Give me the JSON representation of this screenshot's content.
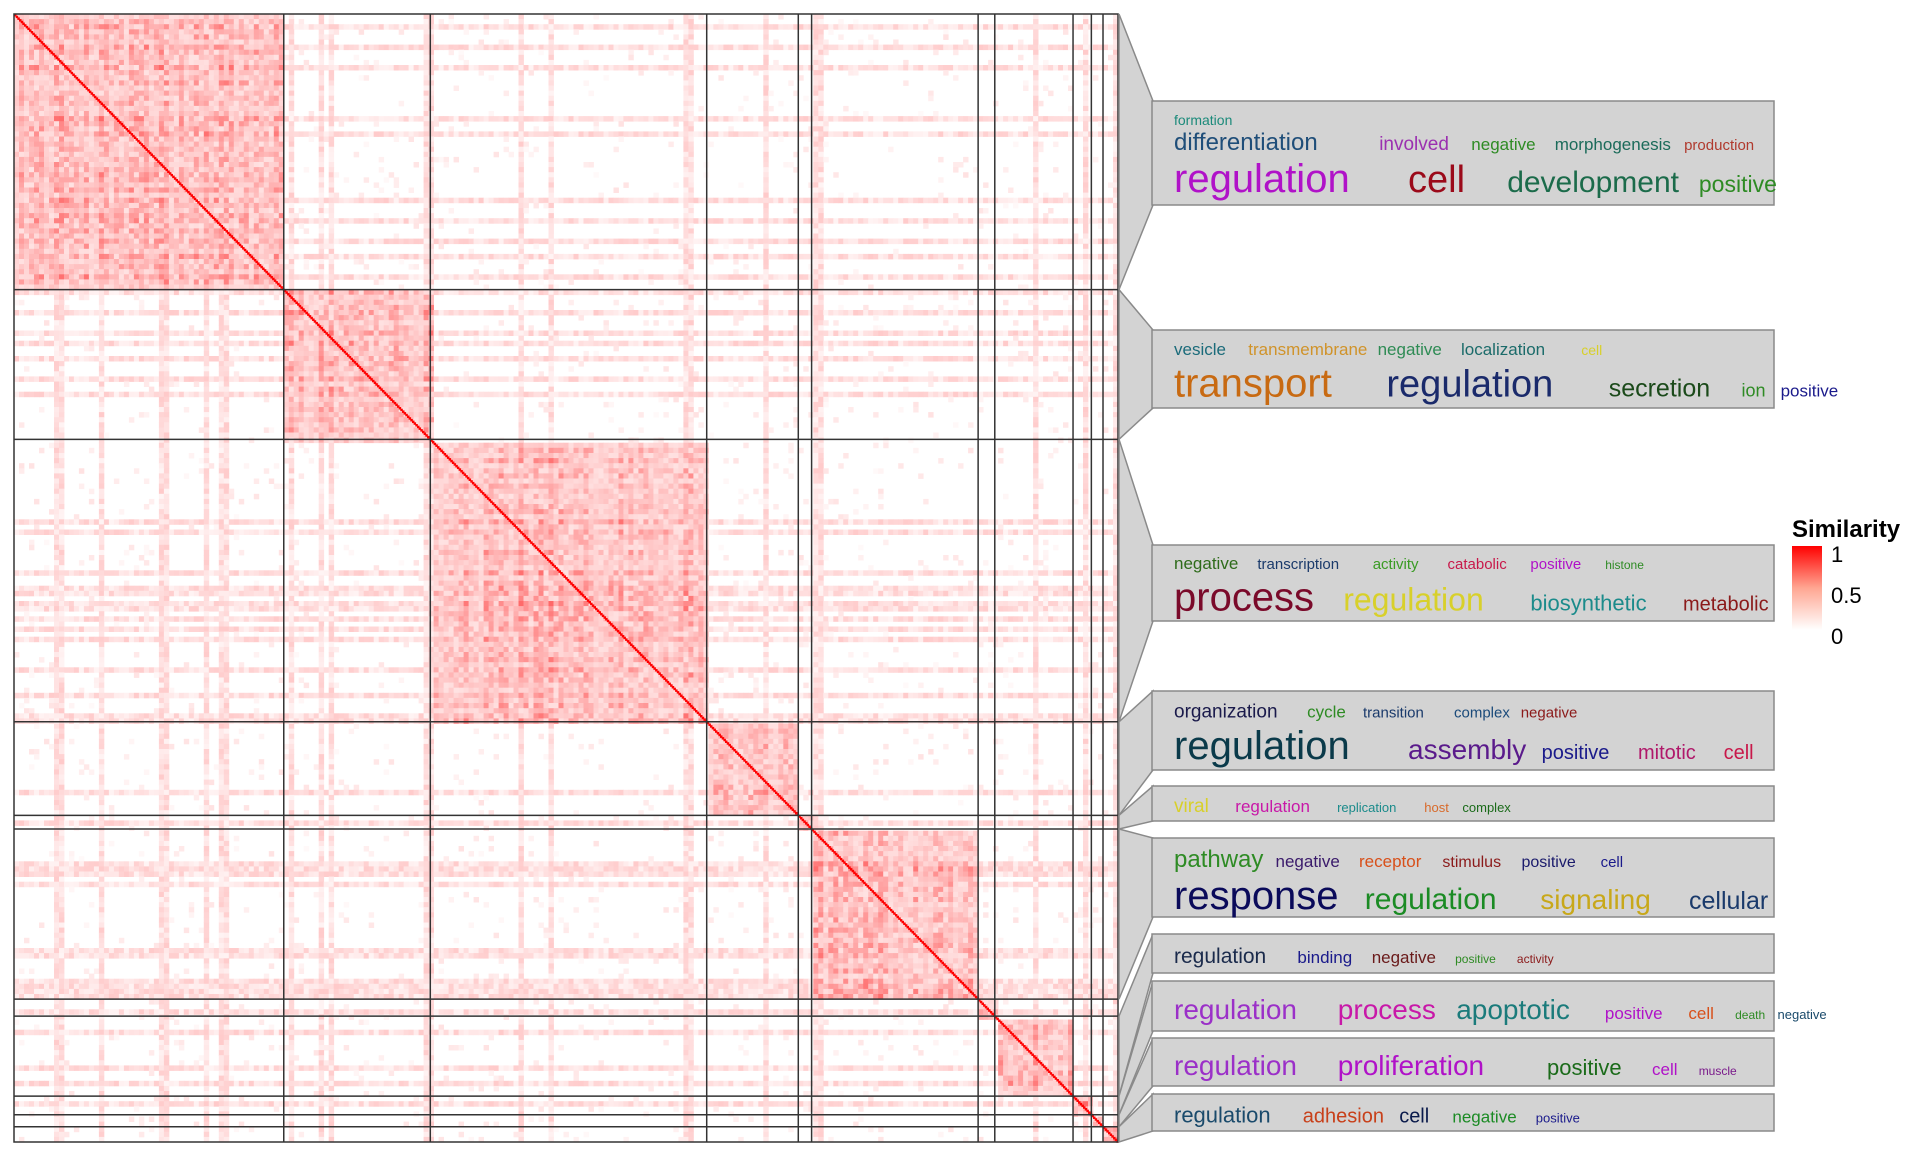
{
  "chart_data": {
    "type": "heatmap",
    "title": "",
    "xlabel": "",
    "ylabel": "",
    "color_scale": {
      "low": "#ffffff",
      "mid": "#ffa692",
      "high": "#ff0000",
      "border": "#333333"
    },
    "legend": {
      "title": "Similarity",
      "ticks": [
        "1",
        "0.5",
        "0"
      ],
      "range": [
        0,
        1
      ],
      "placement": "right"
    },
    "cluster_sizes": [
      162,
      88,
      166,
      55,
      8,
      100,
      10,
      47,
      11,
      7,
      9
    ],
    "clusters": [
      {
        "lines": [
          [
            {
              "t": "formation",
              "s": 14,
              "c": "#1b8a7a"
            }
          ],
          [
            {
              "t": "differentiation",
              "s": 24,
              "c": "#1f4e79"
            },
            {
              "t": "involved",
              "s": 19,
              "c": "#9b30b0"
            },
            {
              "t": "negative",
              "s": 17,
              "c": "#2e8b24"
            },
            {
              "t": "morphogenesis",
              "s": 17,
              "c": "#1b6b5a"
            },
            {
              "t": "production",
              "s": 15,
              "c": "#b03a2e"
            }
          ],
          [
            {
              "t": "regulation",
              "s": 40,
              "c": "#b012c8"
            },
            {
              "t": "cell",
              "s": 38,
              "c": "#9b0a1a"
            },
            {
              "t": "development",
              "s": 30,
              "c": "#1b6b4a"
            },
            {
              "t": "positive",
              "s": 23,
              "c": "#2e8b24"
            }
          ]
        ]
      },
      {
        "lines": [
          [
            {
              "t": "vesicle",
              "s": 17,
              "c": "#1b6b7a"
            },
            {
              "t": "transmembrane",
              "s": 17,
              "c": "#d0932a"
            },
            {
              "t": "negative",
              "s": 17,
              "c": "#2e8b54"
            },
            {
              "t": "localization",
              "s": 17,
              "c": "#1b6b6a"
            },
            {
              "t": "cell",
              "s": 14,
              "c": "#d8d02a"
            }
          ],
          [
            {
              "t": "transport",
              "s": 40,
              "c": "#c86a12"
            },
            {
              "t": "regulation",
              "s": 38,
              "c": "#1a2a6b"
            },
            {
              "t": "secretion",
              "s": 25,
              "c": "#1b4a1a"
            },
            {
              "t": "ion",
              "s": 18,
              "c": "#2e8b24"
            },
            {
              "t": "positive",
              "s": 17,
              "c": "#1a1a8b"
            }
          ]
        ]
      },
      {
        "lines": [
          [
            {
              "t": "negative",
              "s": 17,
              "c": "#2e6b1a"
            },
            {
              "t": "transcription",
              "s": 15,
              "c": "#1a3a6b"
            },
            {
              "t": "activity",
              "s": 15,
              "c": "#3a9b24"
            },
            {
              "t": "catabolic",
              "s": 15,
              "c": "#c8184a"
            },
            {
              "t": "positive",
              "s": 15,
              "c": "#b012c8"
            },
            {
              "t": "histone",
              "s": 12,
              "c": "#2e8b24"
            }
          ],
          [
            {
              "t": "process",
              "s": 40,
              "c": "#7a0a2a"
            },
            {
              "t": "regulation",
              "s": 32,
              "c": "#d8d02a"
            },
            {
              "t": "biosynthetic",
              "s": 22,
              "c": "#1b8b8b"
            },
            {
              "t": "metabolic",
              "s": 20,
              "c": "#8b1a1a"
            }
          ]
        ]
      },
      {
        "lines": [
          [
            {
              "t": "organization",
              "s": 19,
              "c": "#1a1a4b"
            },
            {
              "t": "cycle",
              "s": 17,
              "c": "#2e8b24"
            },
            {
              "t": "transition",
              "s": 15,
              "c": "#1a3a6b"
            },
            {
              "t": "complex",
              "s": 15,
              "c": "#1a4a7a"
            },
            {
              "t": "negative",
              "s": 15,
              "c": "#8b1a1a"
            }
          ],
          [
            {
              "t": "regulation",
              "s": 40,
              "c": "#0a3a4a"
            },
            {
              "t": "assembly",
              "s": 28,
              "c": "#5a1a8b"
            },
            {
              "t": "positive",
              "s": 20,
              "c": "#1a1a8b"
            },
            {
              "t": "mitotic",
              "s": 20,
              "c": "#b0186a"
            },
            {
              "t": "cell",
              "s": 20,
              "c": "#c8184a"
            }
          ]
        ]
      },
      {
        "lines": [
          [
            {
              "t": "viral",
              "s": 19,
              "c": "#d8d02a"
            },
            {
              "t": "regulation",
              "s": 17,
              "c": "#c818a8"
            },
            {
              "t": "replication",
              "s": 13,
              "c": "#1b8b8b"
            },
            {
              "t": "host",
              "s": 13,
              "c": "#d86a2a"
            },
            {
              "t": "complex",
              "s": 13,
              "c": "#1b6b1a"
            }
          ]
        ]
      },
      {
        "lines": [
          [
            {
              "t": "pathway",
              "s": 24,
              "c": "#2e8b24"
            },
            {
              "t": "negative",
              "s": 17,
              "c": "#3a1a6b"
            },
            {
              "t": "receptor",
              "s": 17,
              "c": "#d8501a"
            },
            {
              "t": "stimulus",
              "s": 16,
              "c": "#8b1a1a"
            },
            {
              "t": "positive",
              "s": 16,
              "c": "#1a1a6b"
            },
            {
              "t": "cell",
              "s": 15,
              "c": "#1a1a8b"
            }
          ],
          [
            {
              "t": "response",
              "s": 40,
              "c": "#0a0a5a"
            },
            {
              "t": "regulation",
              "s": 30,
              "c": "#1b8b24"
            },
            {
              "t": "signaling",
              "s": 28,
              "c": "#c8a81a"
            },
            {
              "t": "cellular",
              "s": 25,
              "c": "#1a3a6b"
            }
          ]
        ]
      },
      {
        "lines": [
          [
            {
              "t": "regulation",
              "s": 21,
              "c": "#1a2a4b"
            },
            {
              "t": "binding",
              "s": 17,
              "c": "#1a1a8b"
            },
            {
              "t": "negative",
              "s": 17,
              "c": "#6a1a1a"
            },
            {
              "t": "positive",
              "s": 12,
              "c": "#2e8b24"
            },
            {
              "t": "activity",
              "s": 12,
              "c": "#8b1a1a"
            }
          ]
        ]
      },
      {
        "lines": [
          [
            {
              "t": "regulation",
              "s": 28,
              "c": "#9b30c8"
            },
            {
              "t": "process",
              "s": 28,
              "c": "#c818a8"
            },
            {
              "t": "apoptotic",
              "s": 28,
              "c": "#1b7b7b"
            },
            {
              "t": "positive",
              "s": 17,
              "c": "#b012c8"
            },
            {
              "t": "cell",
              "s": 17,
              "c": "#d8501a"
            },
            {
              "t": "death",
              "s": 12,
              "c": "#2e8b24"
            },
            {
              "t": "negative",
              "s": 13,
              "c": "#1a4a6b"
            }
          ]
        ]
      },
      {
        "lines": [
          [
            {
              "t": "regulation",
              "s": 28,
              "c": "#9b30c8"
            },
            {
              "t": "proliferation",
              "s": 28,
              "c": "#b012c8"
            },
            {
              "t": "positive",
              "s": 22,
              "c": "#1b6b1a"
            },
            {
              "t": "cell",
              "s": 17,
              "c": "#b012c8"
            },
            {
              "t": "muscle",
              "s": 12,
              "c": "#7a1a8b"
            }
          ]
        ]
      },
      {
        "lines": [
          [
            {
              "t": "regulation",
              "s": 22,
              "c": "#1a4a6b"
            },
            {
              "t": "adhesion",
              "s": 20,
              "c": "#c8401a"
            },
            {
              "t": "cell",
              "s": 20,
              "c": "#0a1a4b"
            },
            {
              "t": "negative",
              "s": 17,
              "c": "#1b8b24"
            },
            {
              "t": "positive",
              "s": 13,
              "c": "#1a1a8b"
            }
          ]
        ]
      }
    ]
  }
}
